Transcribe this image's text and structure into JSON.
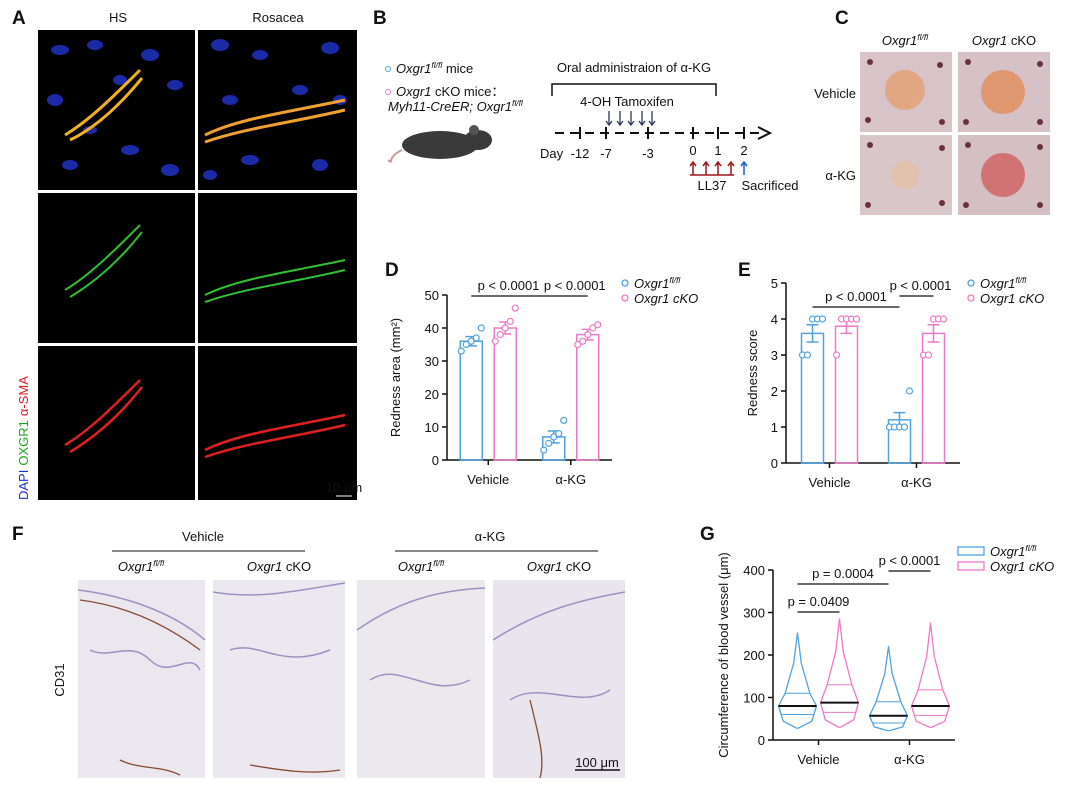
{
  "panel_labels": [
    "A",
    "B",
    "C",
    "D",
    "E",
    "F",
    "G"
  ],
  "panel_a": {
    "columns": [
      "HS",
      "Rosacea"
    ],
    "stain_labels": [
      "DAPI",
      "OXGR1",
      "α-SMA"
    ],
    "scale_bar": "10 μm"
  },
  "panel_b": {
    "legend": [
      {
        "gene": "Oxgr1",
        "sup": "fl/fl",
        "rest": " mice"
      },
      {
        "gene": "Oxgr1",
        "rest": " cKO mice："
      },
      {
        "gene": "Myh11-CreER; Oxgr1",
        "sup": "fl/fl"
      }
    ],
    "oral": "Oral administraion of α-KG",
    "tamoxifen": "4-OH Tamoxifen",
    "day_label": "Day",
    "days": [
      -12,
      -7,
      -3,
      0,
      1,
      2
    ],
    "ll37": "LL37",
    "sacrificed": "Sacrificed"
  },
  "panel_c": {
    "columns": [
      {
        "gene": "Oxgr1",
        "sup": "fl/fl"
      },
      {
        "gene": "Oxgr1",
        "rest": " cKO"
      }
    ],
    "rows": [
      "Vehicle",
      "α-KG"
    ]
  },
  "panel_f": {
    "groups": [
      "Vehicle",
      "α-KG"
    ],
    "columns": [
      {
        "gene": "Oxgr1",
        "sup": "fl/fl"
      },
      {
        "gene": "Oxgr1",
        "rest": " cKO"
      },
      {
        "gene": "Oxgr1",
        "sup": "fl/fl"
      },
      {
        "gene": "Oxgr1",
        "rest": " cKO"
      }
    ],
    "stain": "CD31",
    "scale_bar": "100 μm"
  },
  "chart_data": [
    {
      "type": "bar",
      "ylabel": "Redness area (mm²)",
      "categories": [
        "Vehicle",
        "α-KG"
      ],
      "ylim": [
        0,
        50
      ],
      "yticks": [
        0,
        10,
        20,
        30,
        40,
        50
      ],
      "series": [
        {
          "name": "Oxgr1",
          "name_sup": "fl/fl",
          "color": "#4ea3e0",
          "values": [
            36,
            7
          ],
          "errors": [
            1.4,
            1.8
          ],
          "points": [
            [
              33,
              35,
              36,
              37,
              40
            ],
            [
              3,
              5,
              7,
              8,
              12
            ]
          ]
        },
        {
          "name": "Oxgr1 cKO",
          "color": "#ee79c8",
          "values": [
            40,
            38
          ],
          "errors": [
            1.8,
            1.6
          ],
          "points": [
            [
              36,
              38,
              40,
              42,
              46
            ],
            [
              35,
              36,
              38,
              40,
              41
            ]
          ]
        }
      ],
      "annotations": [
        {
          "text": "p < 0.0001"
        },
        {
          "text": "p < 0.0001"
        }
      ]
    },
    {
      "type": "bar",
      "ylabel": "Redness score",
      "categories": [
        "Vehicle",
        "α-KG"
      ],
      "ylim": [
        0,
        5
      ],
      "yticks": [
        0,
        1,
        2,
        3,
        4,
        5
      ],
      "series": [
        {
          "name": "Oxgr1",
          "name_sup": "fl/fl",
          "color": "#4ea3e0",
          "values": [
            3.6,
            1.2
          ],
          "errors": [
            0.24,
            0.2
          ],
          "points": [
            [
              3,
              3,
              4,
              4,
              4
            ],
            [
              1,
              1,
              1,
              1,
              2
            ]
          ]
        },
        {
          "name": "Oxgr1 cKO",
          "color": "#ee79c8",
          "values": [
            3.8,
            3.6
          ],
          "errors": [
            0.2,
            0.24
          ],
          "points": [
            [
              3,
              4,
              4,
              4,
              4
            ],
            [
              3,
              3,
              4,
              4,
              4
            ]
          ]
        }
      ],
      "annotations": [
        {
          "text": "p < 0.0001"
        },
        {
          "text": "p < 0.0001"
        }
      ]
    },
    {
      "type": "violin",
      "ylabel": "Circumference of blood vessel (μm)",
      "categories": [
        "Vehicle",
        "α-KG"
      ],
      "ylim": [
        0,
        400
      ],
      "yticks": [
        0,
        100,
        200,
        300,
        400
      ],
      "series": [
        {
          "name": "Oxgr1",
          "name_sup": "fl/fl",
          "color": "#4ea3e0",
          "min": [
            28,
            22
          ],
          "q1": [
            60,
            40
          ],
          "median": [
            80,
            57
          ],
          "q3": [
            110,
            90
          ],
          "max": [
            252,
            220
          ]
        },
        {
          "name": "Oxgr1 cKO",
          "color": "#ee79c8",
          "min": [
            30,
            30
          ],
          "q1": [
            65,
            58
          ],
          "median": [
            88,
            80
          ],
          "q3": [
            130,
            118
          ],
          "max": [
            285,
            275
          ]
        }
      ],
      "annotations": [
        {
          "text": "p = 0.0409"
        },
        {
          "text": "p = 0.0004"
        },
        {
          "text": "p < 0.0001"
        }
      ]
    }
  ]
}
